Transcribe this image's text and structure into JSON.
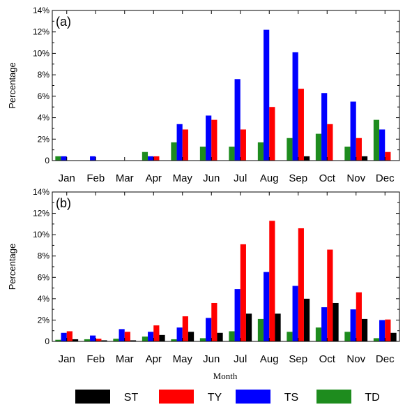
{
  "chart_data": [
    {
      "type": "bar",
      "panel_label": "(a)",
      "categories": [
        "Jan",
        "Feb",
        "Mar",
        "Apr",
        "May",
        "Jun",
        "Jul",
        "Aug",
        "Sep",
        "Oct",
        "Nov",
        "Dec"
      ],
      "ylabel": "Percentage",
      "ylim": [
        0,
        14
      ],
      "yticks": [
        "0",
        "2%",
        "4%",
        "6%",
        "8%",
        "10%",
        "12%",
        "14%"
      ],
      "series": [
        {
          "key": "TD",
          "color": "#1e8c1e",
          "values": [
            0.4,
            0,
            0,
            0.8,
            1.7,
            1.3,
            1.3,
            1.7,
            2.1,
            2.5,
            1.3,
            3.8
          ]
        },
        {
          "key": "TS",
          "color": "#0000ff",
          "values": [
            0.4,
            0.4,
            0,
            0.4,
            3.4,
            4.2,
            7.6,
            12.2,
            10.1,
            6.3,
            5.5,
            2.9
          ]
        },
        {
          "key": "TY",
          "color": "#ff0000",
          "values": [
            0,
            0,
            0,
            0.4,
            2.9,
            3.8,
            2.9,
            5.0,
            6.7,
            3.4,
            2.1,
            0.8
          ]
        },
        {
          "key": "ST",
          "color": "#000000",
          "values": [
            0,
            0,
            0,
            0,
            0,
            0,
            0,
            0,
            0.4,
            0,
            0.4,
            0
          ]
        }
      ]
    },
    {
      "type": "bar",
      "panel_label": "(b)",
      "categories": [
        "Jan",
        "Feb",
        "Mar",
        "Apr",
        "May",
        "Jun",
        "Jul",
        "Aug",
        "Sep",
        "Oct",
        "Nov",
        "Dec"
      ],
      "xlabel": "Month",
      "ylabel": "Percentage",
      "ylim": [
        0,
        14
      ],
      "yticks": [
        "0",
        "2%",
        "4%",
        "6%",
        "8%",
        "10%",
        "12%",
        "14%"
      ],
      "series": [
        {
          "key": "TD",
          "color": "#1e8c1e",
          "values": [
            0.15,
            0.2,
            0.25,
            0.45,
            0.2,
            0.3,
            0.95,
            2.1,
            0.9,
            1.3,
            0.9,
            0.3
          ]
        },
        {
          "key": "TS",
          "color": "#0000ff",
          "values": [
            0.8,
            0.55,
            1.15,
            0.9,
            1.3,
            2.2,
            4.9,
            6.5,
            5.2,
            3.2,
            3.0,
            2.0
          ]
        },
        {
          "key": "TY",
          "color": "#ff0000",
          "values": [
            0.95,
            0.25,
            0.9,
            1.5,
            2.35,
            3.6,
            9.1,
            11.3,
            10.6,
            8.6,
            4.6,
            2.05
          ]
        },
        {
          "key": "ST",
          "color": "#000000",
          "values": [
            0.2,
            0.1,
            0.1,
            0.6,
            0.9,
            0.8,
            2.6,
            2.6,
            4.0,
            3.6,
            2.1,
            0.8
          ]
        }
      ]
    }
  ],
  "legend": [
    {
      "label": "ST",
      "color": "#000000"
    },
    {
      "label": "TY",
      "color": "#ff0000"
    },
    {
      "label": "TS",
      "color": "#0000ff"
    },
    {
      "label": "TD",
      "color": "#1e8c1e"
    }
  ]
}
